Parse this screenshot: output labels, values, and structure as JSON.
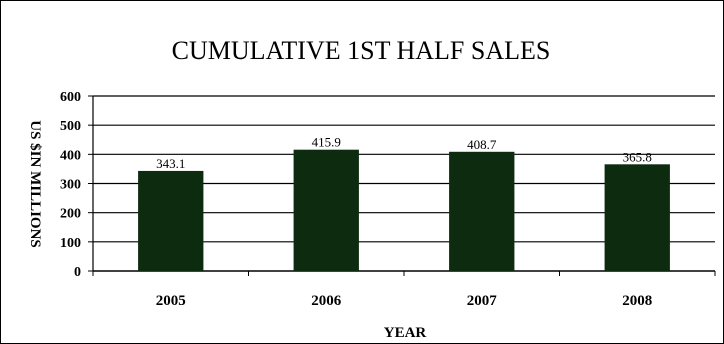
{
  "chart_data": {
    "type": "bar",
    "title": "CUMULATIVE 1ST HALF SALES",
    "xlabel": "YEAR",
    "ylabel": "US $IN MILLIONS",
    "categories": [
      "2005",
      "2006",
      "2007",
      "2008"
    ],
    "values": [
      343.1,
      415.9,
      408.7,
      365.8
    ],
    "data_labels": [
      "343.1",
      "415.9",
      "408.7",
      "365.8"
    ],
    "ylim": [
      0,
      600
    ],
    "yticks": [
      "0",
      "100",
      "200",
      "300",
      "400",
      "500",
      "600"
    ],
    "grid": true,
    "bar_color": "#0d2b0f",
    "legend": "none"
  }
}
